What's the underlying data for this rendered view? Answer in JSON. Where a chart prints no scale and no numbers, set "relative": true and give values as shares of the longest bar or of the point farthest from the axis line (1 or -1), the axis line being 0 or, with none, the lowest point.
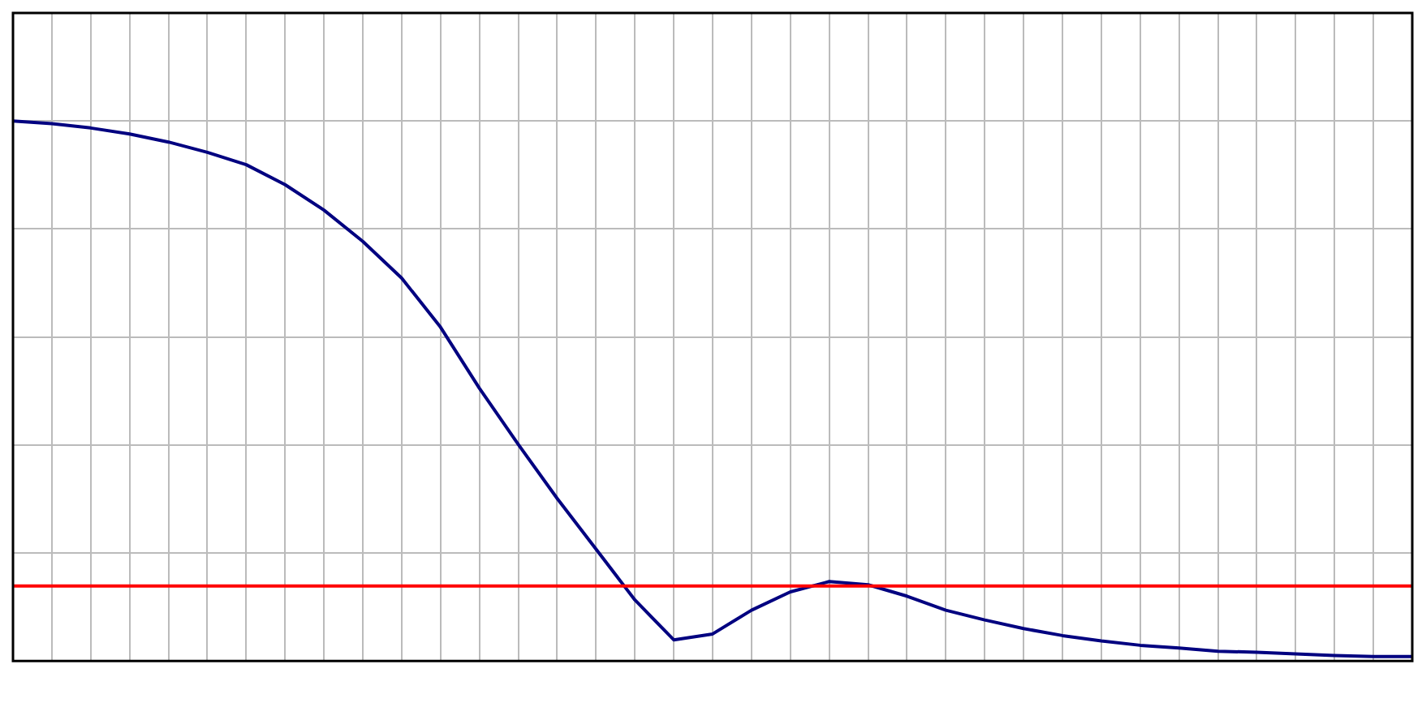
{
  "chart_data": {
    "type": "line",
    "relative": true,
    "grid": true,
    "legend": false,
    "marker": "none",
    "line_style": "solid",
    "categories": [
      null,
      null,
      null,
      null,
      null,
      null,
      null,
      null,
      null,
      null,
      null,
      null,
      null,
      null,
      null,
      null,
      null,
      null,
      null,
      null,
      null,
      null,
      null,
      null,
      null,
      null,
      null,
      null,
      null,
      null,
      null,
      null,
      null,
      null,
      null,
      null,
      null
    ],
    "series": [
      {
        "color": "#000080",
        "values": [
          1.0,
          0.995,
          0.987,
          0.976,
          0.961,
          0.942,
          0.919,
          0.882,
          0.835,
          0.777,
          0.709,
          0.618,
          0.505,
          0.401,
          0.301,
          0.207,
          0.113,
          0.039,
          0.05,
          0.094,
          0.128,
          0.147,
          0.141,
          0.12,
          0.094,
          0.076,
          0.06,
          0.047,
          0.037,
          0.029,
          0.024,
          0.018,
          0.016,
          0.013,
          0.01,
          0.008,
          0.008
        ]
      }
    ],
    "ref_lines": [
      {
        "axis": "y",
        "value": 0.139,
        "color": "#ff0000",
        "line_style": "solid"
      }
    ]
  }
}
